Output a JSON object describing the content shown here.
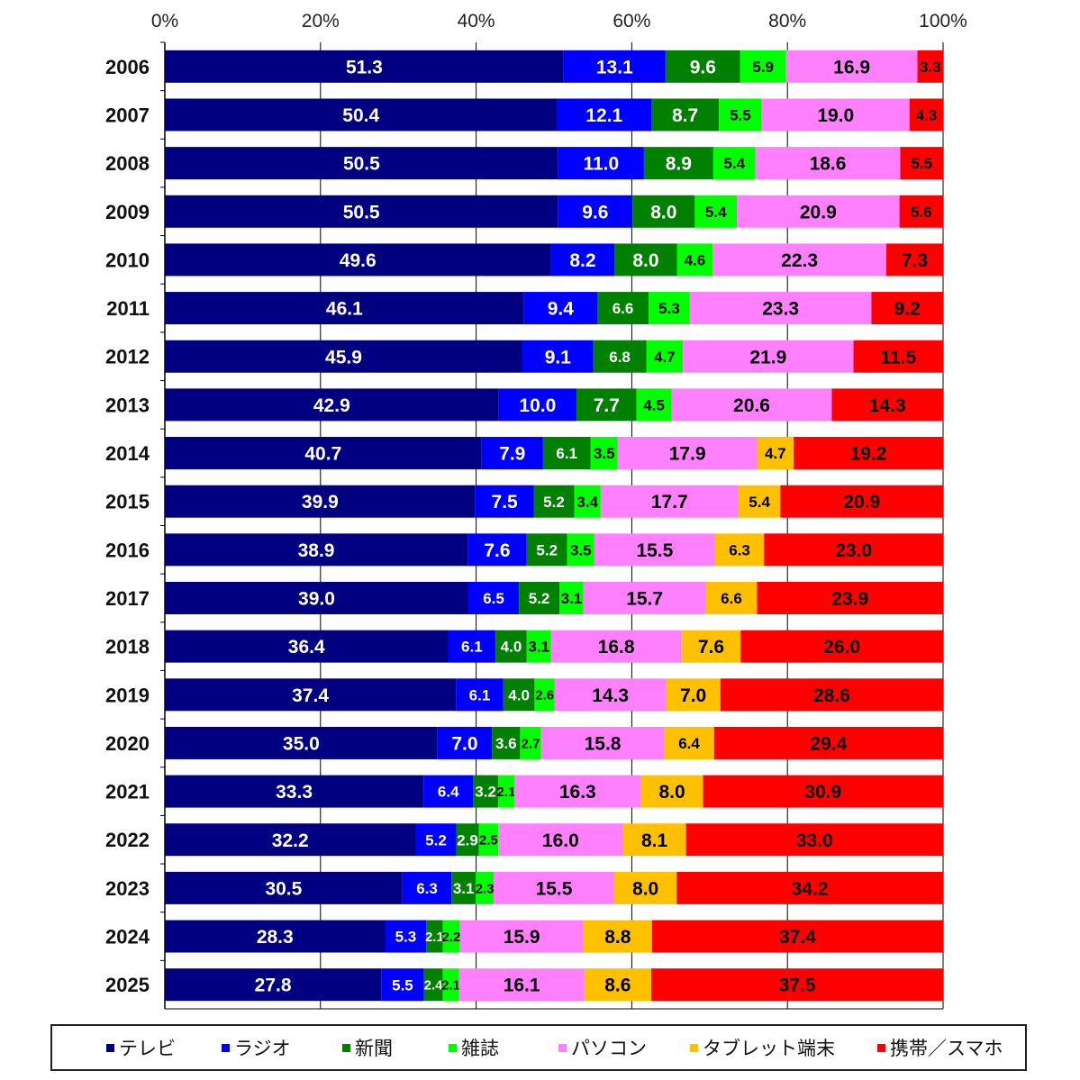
{
  "chart_data": {
    "type": "bar",
    "orientation": "horizontal",
    "stacked": "percent",
    "categories": [
      "2006",
      "2007",
      "2008",
      "2009",
      "2010",
      "2011",
      "2012",
      "2013",
      "2014",
      "2015",
      "2016",
      "2017",
      "2018",
      "2019",
      "2020",
      "2021",
      "2022",
      "2023",
      "2024",
      "2025"
    ],
    "x_ticks": [
      "0%",
      "20%",
      "40%",
      "60%",
      "80%",
      "100%"
    ],
    "xlim": [
      0,
      100
    ],
    "grid": "vertical",
    "legend_position": "bottom",
    "series": [
      {
        "name": "テレビ",
        "color": "#000080",
        "label_color": "#ffffff",
        "values": [
          51.3,
          50.4,
          50.5,
          50.5,
          49.6,
          46.1,
          45.9,
          42.9,
          40.7,
          39.9,
          38.9,
          39.0,
          36.4,
          37.4,
          35.0,
          33.3,
          32.2,
          30.5,
          28.3,
          27.8
        ]
      },
      {
        "name": "ラジオ",
        "color": "#0000ff",
        "label_color": "#ffffff",
        "values": [
          13.1,
          12.1,
          11.0,
          9.6,
          8.2,
          9.4,
          9.1,
          10.0,
          7.9,
          7.5,
          7.6,
          6.5,
          6.1,
          6.1,
          7.0,
          6.4,
          5.2,
          6.3,
          5.3,
          5.5
        ]
      },
      {
        "name": "新聞",
        "color": "#008000",
        "label_color": "#ffffff",
        "values": [
          9.6,
          8.7,
          8.9,
          8.0,
          8.0,
          6.6,
          6.8,
          7.7,
          6.1,
          5.2,
          5.2,
          5.2,
          4.0,
          4.0,
          3.6,
          3.2,
          2.9,
          3.1,
          2.1,
          2.4
        ]
      },
      {
        "name": "雑誌",
        "color": "#00ff00",
        "label_color": "#000000",
        "values": [
          5.9,
          5.5,
          5.4,
          5.4,
          4.6,
          5.3,
          4.7,
          4.5,
          3.5,
          3.4,
          3.5,
          3.1,
          3.1,
          2.6,
          2.7,
          2.1,
          2.5,
          2.3,
          2.2,
          2.1
        ]
      },
      {
        "name": "パソコン",
        "color": "#ff80ff",
        "label_color": "#000000",
        "values": [
          16.9,
          19.0,
          18.6,
          20.9,
          22.3,
          23.3,
          21.9,
          20.6,
          17.9,
          17.7,
          15.5,
          15.7,
          16.8,
          14.3,
          15.8,
          16.3,
          16.0,
          15.5,
          15.9,
          16.1
        ]
      },
      {
        "name": "タブレット端末",
        "color": "#ffc000",
        "label_color": "#000000",
        "values": [
          null,
          null,
          null,
          null,
          null,
          null,
          null,
          null,
          4.7,
          5.4,
          6.3,
          6.6,
          7.6,
          7.0,
          6.4,
          8.0,
          8.1,
          8.0,
          8.8,
          8.6
        ]
      },
      {
        "name": "携帯／スマホ",
        "color": "#ff0000",
        "label_color": "#000000",
        "values": [
          3.3,
          4.3,
          5.5,
          5.6,
          7.3,
          9.2,
          11.5,
          14.3,
          19.2,
          20.9,
          23.0,
          23.9,
          26.0,
          28.6,
          29.4,
          30.9,
          33.0,
          34.2,
          37.4,
          37.5
        ]
      }
    ]
  }
}
